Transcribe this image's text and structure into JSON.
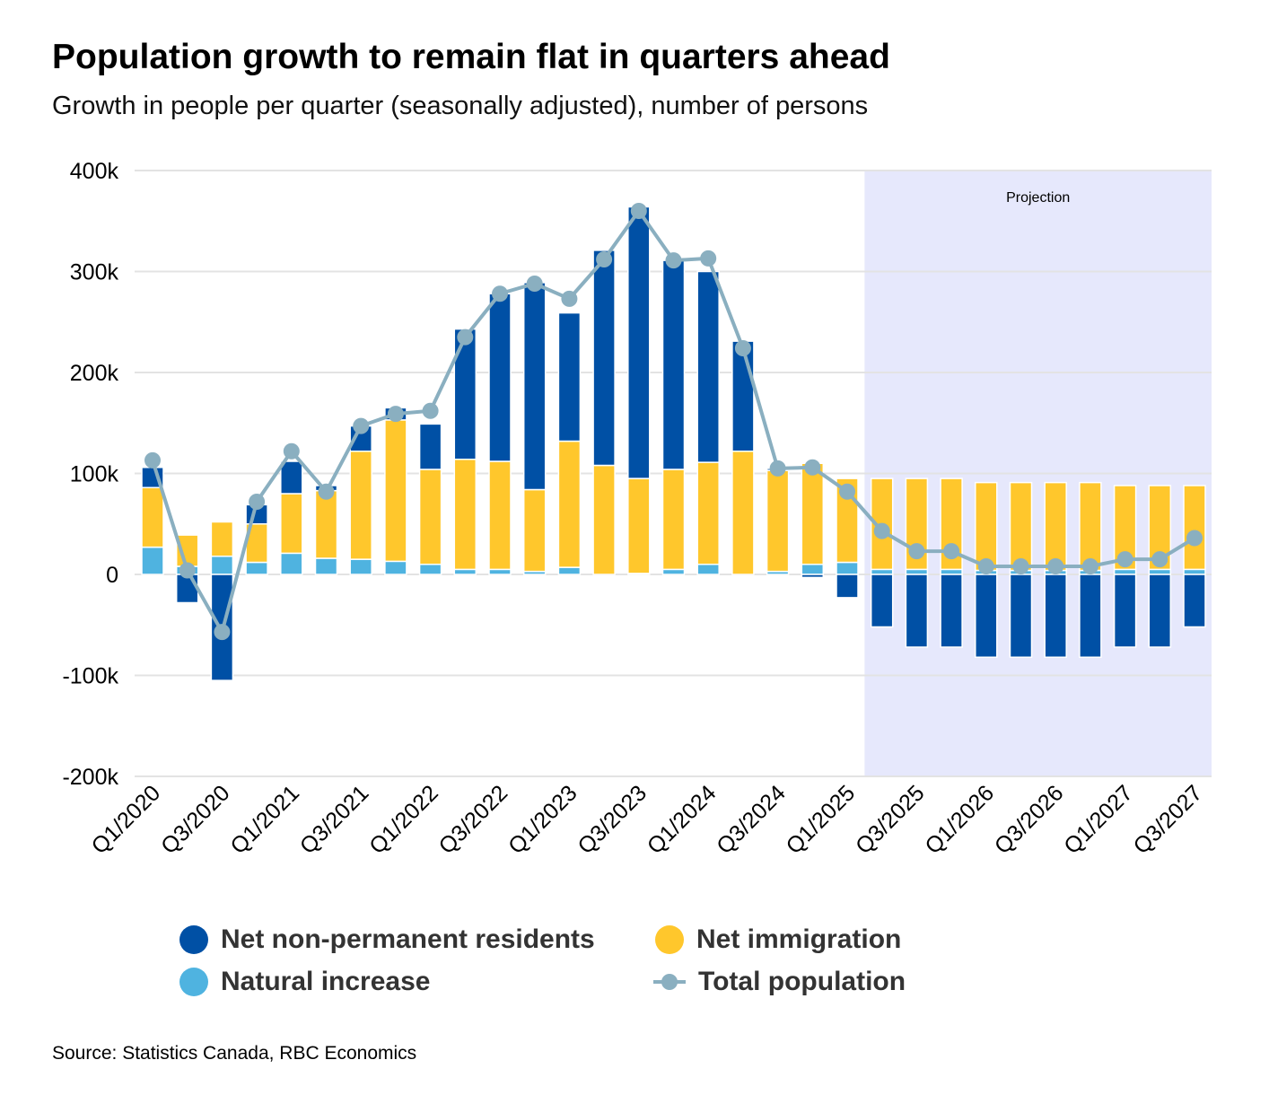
{
  "title": "Population growth to remain flat in quarters ahead",
  "subtitle": "Growth in people per quarter (seasonally adjusted), number of persons",
  "source": "Source: Statistics Canada, RBC Economics",
  "colors": {
    "npr": "#0050a5",
    "immigration": "#ffc72c",
    "natural": "#4fb3e0",
    "total": "#8aafc0",
    "projection": "#e6e8fc"
  },
  "chart_data": {
    "type": "bar",
    "stacked": true,
    "projection_label": "Projection",
    "projection_start": "Q2/2025",
    "ylim": [
      -200,
      400
    ],
    "yticks": [
      400,
      300,
      200,
      100,
      0,
      -100,
      -200
    ],
    "ytick_labels": [
      "400k",
      "300k",
      "200k",
      "100k",
      "0",
      "-100k",
      "-200k"
    ],
    "categories": [
      "Q1/2020",
      "Q2/2020",
      "Q3/2020",
      "Q4/2020",
      "Q1/2021",
      "Q2/2021",
      "Q3/2021",
      "Q4/2021",
      "Q1/2022",
      "Q2/2022",
      "Q3/2022",
      "Q4/2022",
      "Q1/2023",
      "Q2/2023",
      "Q3/2023",
      "Q4/2023",
      "Q1/2024",
      "Q2/2024",
      "Q3/2024",
      "Q4/2024",
      "Q1/2025",
      "Q2/2025",
      "Q3/2025",
      "Q4/2025",
      "Q1/2026",
      "Q2/2026",
      "Q3/2026",
      "Q4/2026",
      "Q1/2027",
      "Q2/2027",
      "Q3/2027"
    ],
    "xtick_labels": [
      "Q1/2020",
      "Q3/2020",
      "Q1/2021",
      "Q3/2021",
      "Q1/2022",
      "Q3/2022",
      "Q1/2023",
      "Q3/2023",
      "Q1/2024",
      "Q3/2024",
      "Q1/2025",
      "Q3/2025",
      "Q1/2026",
      "Q3/2026",
      "Q1/2027",
      "Q3/2027"
    ],
    "series": [
      {
        "name": "Natural increase",
        "type": "bar",
        "values": [
          27,
          8,
          18,
          12,
          21,
          16,
          15,
          13,
          10,
          5,
          5,
          3,
          7,
          0,
          1,
          5,
          10,
          0,
          3,
          10,
          12,
          5,
          5,
          5,
          4,
          4,
          4,
          4,
          5,
          5,
          5
        ]
      },
      {
        "name": "Net immigration",
        "type": "bar",
        "values": [
          59,
          31,
          34,
          38,
          59,
          67,
          107,
          140,
          94,
          109,
          107,
          81,
          125,
          108,
          94,
          99,
          101,
          122,
          100,
          100,
          83,
          90,
          90,
          90,
          87,
          87,
          87,
          87,
          83,
          83,
          83
        ]
      },
      {
        "name": "Net non-permanent residents",
        "type": "bar",
        "values": [
          20,
          -28,
          -105,
          19,
          32,
          5,
          25,
          12,
          45,
          129,
          166,
          205,
          127,
          213,
          269,
          207,
          189,
          109,
          2,
          -3,
          -23,
          -52,
          -72,
          -72,
          -82,
          -82,
          -82,
          -82,
          -72,
          -72,
          -52
        ]
      },
      {
        "name": "Total population",
        "type": "line",
        "values": [
          113,
          4,
          -57,
          72,
          122,
          82,
          147,
          159,
          162,
          235,
          278,
          288,
          273,
          312,
          360,
          311,
          313,
          224,
          105,
          106,
          82,
          43,
          23,
          23,
          8,
          8,
          8,
          8,
          15,
          15,
          36
        ]
      }
    ],
    "legend": [
      "Net non-permanent residents",
      "Net immigration",
      "Natural increase",
      "Total population"
    ],
    "unit": "thousands of persons"
  }
}
